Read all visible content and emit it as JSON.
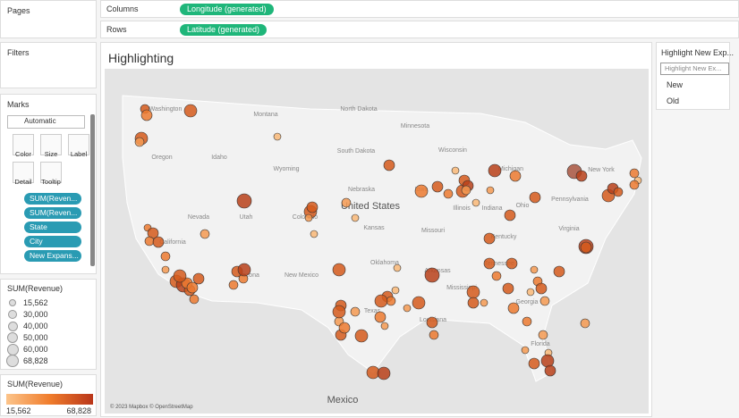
{
  "shelves": {
    "pages": "Pages",
    "columns": {
      "label": "Columns",
      "pill": "Longitude (generated)"
    },
    "rows": {
      "label": "Rows",
      "pill": "Latitude (generated)"
    },
    "filters": "Filters"
  },
  "marks": {
    "title": "Marks",
    "mark_type": "Automatic",
    "buttons": [
      "Color",
      "Size",
      "Label",
      "Detail",
      "Tooltip"
    ],
    "pills": [
      "SUM(Reven...",
      "SUM(Reven...",
      "State",
      "City",
      "New Expans..."
    ]
  },
  "size_legend": {
    "title": "SUM(Revenue)",
    "items": [
      "15,562",
      "30,000",
      "40,000",
      "50,000",
      "60,000",
      "68,828"
    ]
  },
  "color_legend": {
    "title": "SUM(Revenue)",
    "min": "15,562",
    "max": "68,828"
  },
  "view": {
    "title": "Highlighting",
    "attribution": "© 2023 Mapbox © OpenStreetMap",
    "map_labels": [
      "Washington",
      "Montana",
      "North Dakota",
      "Minnesota",
      "Oregon",
      "Idaho",
      "South Dakota",
      "Wisconsin",
      "Michigan",
      "Wyoming",
      "Nebraska",
      "Iowa",
      "Illinois",
      "Indiana",
      "Ohio",
      "Pennsylvania",
      "New York",
      "Nevada",
      "Utah",
      "Colorado",
      "United States",
      "Kansas",
      "Missouri",
      "Kentucky",
      "Virginia",
      "California",
      "Oklahoma",
      "Arkansas",
      "Tennessee",
      "Arizona",
      "New Mexico",
      "Texas",
      "Mississippi",
      "Louisiana",
      "Georgia",
      "Florida",
      "Mexico"
    ]
  },
  "highlighter": {
    "title": "Highlight New Exp...",
    "placeholder": "Highlight New Ex...",
    "options": [
      "New",
      "Old"
    ]
  }
}
